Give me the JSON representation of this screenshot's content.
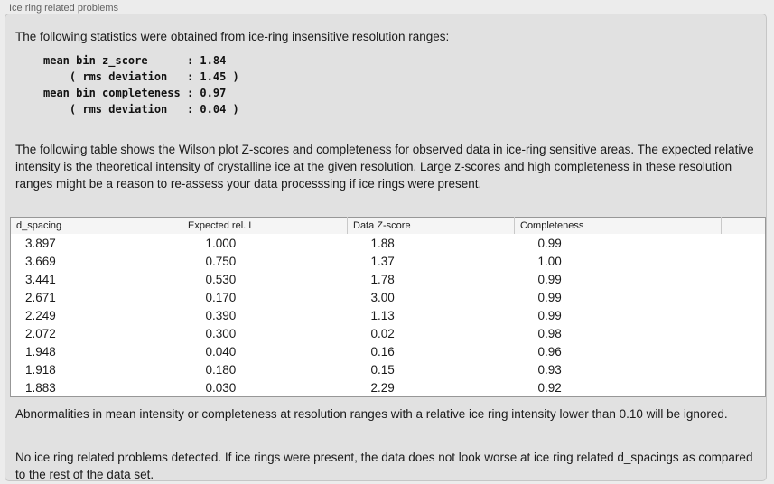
{
  "panel": {
    "title": "Ice ring related problems"
  },
  "intro": {
    "text": "The following statistics were obtained from ice-ring insensitive resolution ranges:"
  },
  "stats_block": {
    "text": "mean bin z_score      : 1.84\n    ( rms deviation   : 1.45 )\nmean bin completeness : 0.97\n    ( rms deviation   : 0.04 )",
    "mean_bin_z_score": "1.84",
    "z_score_rms_deviation": "1.45",
    "mean_bin_completeness": "0.97",
    "completeness_rms_deviation": "0.04"
  },
  "description": {
    "text": "The following table shows the Wilson plot Z-scores and completeness for observed data in ice-ring sensitive areas. The expected relative intensity is the theoretical intensity of crystalline ice at the given resolution. Large z-scores and high completeness in these resolution ranges might be a reason to re-assess your data processsing if ice rings were present."
  },
  "table": {
    "columns": [
      "d_spacing",
      "Expected rel. I",
      "Data Z-score",
      "Completeness",
      ""
    ],
    "rows": [
      [
        "3.897",
        "1.000",
        "1.88",
        "0.99"
      ],
      [
        "3.669",
        "0.750",
        "1.37",
        "1.00"
      ],
      [
        "3.441",
        "0.530",
        "1.78",
        "0.99"
      ],
      [
        "2.671",
        "0.170",
        "3.00",
        "0.99"
      ],
      [
        "2.249",
        "0.390",
        "1.13",
        "0.99"
      ],
      [
        "2.072",
        "0.300",
        "0.02",
        "0.98"
      ],
      [
        "1.948",
        "0.040",
        "0.16",
        "0.96"
      ],
      [
        "1.918",
        "0.180",
        "0.15",
        "0.93"
      ],
      [
        "1.883",
        "0.030",
        "2.29",
        "0.92"
      ]
    ]
  },
  "notes": {
    "ignore_rule": "Abnormalities in mean intensity or completeness at resolution ranges with a relative ice ring intensity lower than 0.10 will be ignored.",
    "conclusion": "No ice ring related problems detected. If ice rings were present, the data does not look worse at ice ring related d_spacings as compared to the rest of the data set."
  },
  "colors": {
    "page_bg": "#ececec",
    "panel_bg": "#e1e1e1",
    "panel_border": "#c6c6c6",
    "table_bg": "#ffffff",
    "table_border": "#979797",
    "table_header_bg": "#f5f5f5",
    "text": "#1a1a1a",
    "title_text": "#626262"
  }
}
